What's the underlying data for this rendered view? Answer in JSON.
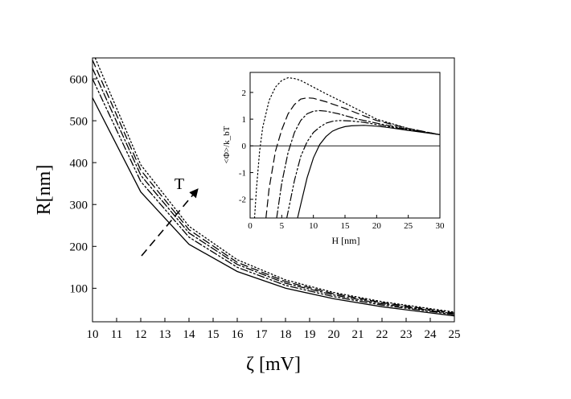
{
  "chart_data": [
    {
      "type": "line",
      "xlabel": "ζ [mV]",
      "ylabel": "R[nm]",
      "xlim": [
        10,
        25
      ],
      "ylim": [
        20,
        650
      ],
      "xticks": [
        10,
        11,
        12,
        13,
        14,
        15,
        16,
        17,
        18,
        19,
        20,
        21,
        22,
        23,
        24,
        25
      ],
      "yticks": [
        100,
        200,
        300,
        400,
        500,
        600
      ],
      "annotation": "T",
      "grid": false,
      "legend": "none",
      "series": [
        {
          "style": "solid",
          "x": [
            10,
            12,
            14,
            16,
            18,
            20,
            22,
            25
          ],
          "y": [
            555,
            330,
            205,
            140,
            100,
            75,
            56,
            34
          ]
        },
        {
          "style": "dash-dot-dot",
          "x": [
            10,
            12,
            14,
            16,
            18,
            20,
            22,
            25
          ],
          "y": [
            600,
            355,
            222,
            150,
            107,
            80,
            60,
            37
          ]
        },
        {
          "style": "dash-dot",
          "x": [
            10,
            12,
            14,
            16,
            18,
            20,
            22,
            25
          ],
          "y": [
            625,
            370,
            232,
            157,
            112,
            84,
            63,
            39
          ]
        },
        {
          "style": "dashed",
          "x": [
            10,
            12,
            14,
            16,
            18,
            20,
            22,
            25
          ],
          "y": [
            645,
            382,
            240,
            162,
            116,
            87,
            66,
            41
          ]
        },
        {
          "style": "dotted",
          "x": [
            10,
            12,
            14,
            16,
            18,
            20,
            22,
            25
          ],
          "y": [
            665,
            395,
            248,
            168,
            120,
            90,
            68,
            43
          ]
        }
      ]
    },
    {
      "type": "line",
      "inset": true,
      "xlabel": "H  [nm]",
      "ylabel": "<Φ>/k_bT",
      "xlim": [
        0,
        30
      ],
      "ylim": [
        -2.7,
        2.75
      ],
      "xticks": [
        0,
        5,
        10,
        15,
        20,
        25,
        30
      ],
      "yticks": [
        -2,
        -1,
        0,
        1,
        2
      ],
      "grid": false,
      "legend": "none",
      "series": [
        {
          "style": "dotted",
          "x": [
            0.7,
            1,
            1.5,
            2,
            3,
            4,
            5,
            6,
            7,
            8,
            10,
            12,
            15,
            20,
            25,
            30
          ],
          "y": [
            -2.7,
            -1.6,
            -0.2,
            0.7,
            1.7,
            2.2,
            2.45,
            2.55,
            2.52,
            2.45,
            2.2,
            1.95,
            1.6,
            1.0,
            0.65,
            0.42
          ]
        },
        {
          "style": "dashed",
          "x": [
            2.5,
            3,
            4,
            5,
            6,
            7,
            8,
            9,
            10,
            12,
            15,
            18,
            20,
            25,
            30
          ],
          "y": [
            -2.7,
            -1.6,
            -0.2,
            0.6,
            1.2,
            1.55,
            1.75,
            1.8,
            1.78,
            1.65,
            1.4,
            1.12,
            0.95,
            0.65,
            0.42
          ]
        },
        {
          "style": "dash-dot",
          "x": [
            4.2,
            5,
            6,
            7,
            8,
            9,
            10,
            11,
            12,
            14,
            17,
            20,
            25,
            30
          ],
          "y": [
            -2.7,
            -1.4,
            -0.25,
            0.5,
            0.95,
            1.2,
            1.3,
            1.32,
            1.3,
            1.2,
            1.0,
            0.85,
            0.62,
            0.42
          ]
        },
        {
          "style": "dash-dot-dot",
          "x": [
            5.8,
            7,
            8,
            9,
            10,
            11,
            12,
            13,
            14,
            16,
            18,
            20,
            25,
            30
          ],
          "y": [
            -2.7,
            -1.3,
            -0.4,
            0.15,
            0.5,
            0.7,
            0.85,
            0.92,
            0.95,
            0.93,
            0.88,
            0.8,
            0.6,
            0.42
          ]
        },
        {
          "style": "solid",
          "x": [
            7.5,
            8,
            9,
            10,
            11,
            12,
            13,
            14,
            15,
            16,
            18,
            20,
            22,
            25,
            30
          ],
          "y": [
            -2.7,
            -2.2,
            -1.2,
            -0.45,
            0.05,
            0.35,
            0.55,
            0.65,
            0.72,
            0.75,
            0.77,
            0.74,
            0.68,
            0.58,
            0.42
          ]
        },
        {
          "style": "thin-solid",
          "role": "zero-line",
          "x": [
            0,
            30
          ],
          "y": [
            0,
            0
          ]
        }
      ]
    }
  ]
}
